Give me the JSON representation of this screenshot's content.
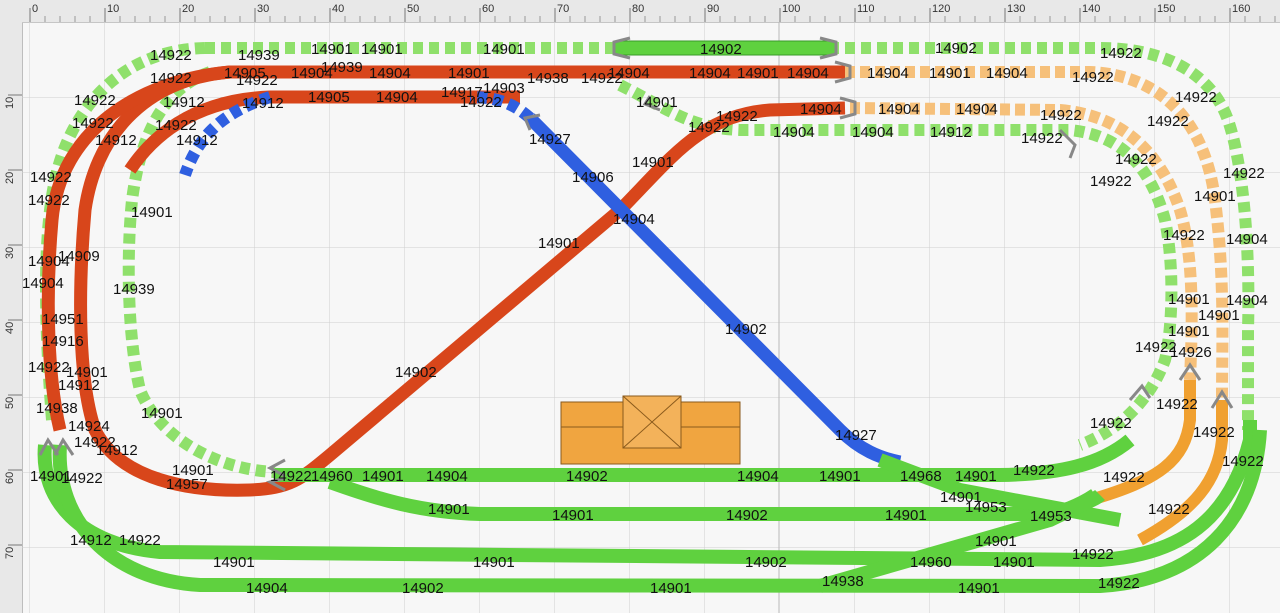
{
  "ruler": {
    "x_ticks": [
      "0",
      "10",
      "20",
      "30",
      "40",
      "50",
      "60",
      "70",
      "80",
      "90",
      "100",
      "110",
      "120",
      "130",
      "140",
      "150",
      "160"
    ],
    "y_ticks": [
      "10",
      "20",
      "30",
      "40",
      "50",
      "60",
      "70"
    ]
  },
  "colors": {
    "green": "#5fd13f",
    "green_light": "#a7ec8a",
    "red": "#d8461b",
    "blue": "#2f5fe0",
    "orange": "#f0a030",
    "building": "#f0a540"
  },
  "labels": {
    "t1": "14922",
    "t2": "14939",
    "t3": "14901",
    "t4": "14901",
    "t5": "14901",
    "t6": "14902",
    "t7": "14902",
    "t8": "14922",
    "t9": "14922",
    "t10": "14905",
    "t11": "14922",
    "t12": "14904",
    "t13": "14939",
    "t14": "14904",
    "t15": "14901",
    "t16": "14938",
    "t17": "14922",
    "t18": "14904",
    "t19": "14904",
    "t20": "14901",
    "t21": "14904",
    "t22": "14904",
    "t23": "14901",
    "t24": "14904",
    "t25": "14922",
    "t26": "14922",
    "t27": "14912",
    "t28": "14912",
    "t29": "14905",
    "t30": "14904",
    "t31": "14917",
    "t32": "14903",
    "t33": "14922",
    "t34": "14901",
    "t35": "14904",
    "t36": "14904",
    "t37": "14922",
    "t38": "14922",
    "t39": "14922",
    "t40": "14922",
    "t41": "14912",
    "t42": "14927",
    "t43": "14922",
    "t44": "14904",
    "t45": "14904",
    "t46": "14904",
    "t47": "14922",
    "t48": "14922",
    "t49": "14922",
    "t50": "14912",
    "t51": "14912",
    "t52": "14901",
    "t53": "14922",
    "t54": "14922",
    "t55": "14906",
    "t56": "14922",
    "t57": "14922",
    "t58": "14904",
    "t59": "14901",
    "t60": "14922",
    "t61": "14909",
    "t62": "14901",
    "t63": "14904",
    "t64": "14901",
    "t65": "14922",
    "t66": "14904",
    "t67": "14939",
    "t68": "14904",
    "t69": "14951",
    "t70": "14902",
    "t71": "14901",
    "t72": "14901",
    "t73": "14916",
    "t74": "14901",
    "t75": "14922",
    "t76": "14926",
    "t77": "14922",
    "t78": "14901",
    "t79": "14902",
    "t80": "14904",
    "t81": "14912",
    "t82": "14938",
    "t83": "14901",
    "t84": "14922",
    "t85": "14922",
    "t86": "14924",
    "t87": "14927",
    "t88": "14922",
    "t89": "14912",
    "t90": "14922",
    "t91": "14922",
    "t92": "14901",
    "t93": "14922",
    "t94": "14960",
    "t95": "14901",
    "t96": "14904",
    "t97": "14902",
    "t98": "14904",
    "t99": "14901",
    "t100": "14968",
    "t101": "14901",
    "t102": "14922",
    "t103": "14957",
    "t104": "14901",
    "t105": "14922",
    "t106": "14901",
    "t107": "14901",
    "t108": "14902",
    "t109": "14901",
    "t110": "14953",
    "t111": "14953",
    "t112": "14922",
    "t113": "14912",
    "t114": "14922",
    "t115": "14901",
    "t116": "14922",
    "t117": "14901",
    "t118": "14901",
    "t119": "14902",
    "t120": "14960",
    "t121": "14901",
    "t122": "14922",
    "t123": "14901",
    "t124": "14904",
    "t125": "14902",
    "t126": "14901",
    "t127": "14938",
    "t128": "14901",
    "t129": "14922"
  }
}
